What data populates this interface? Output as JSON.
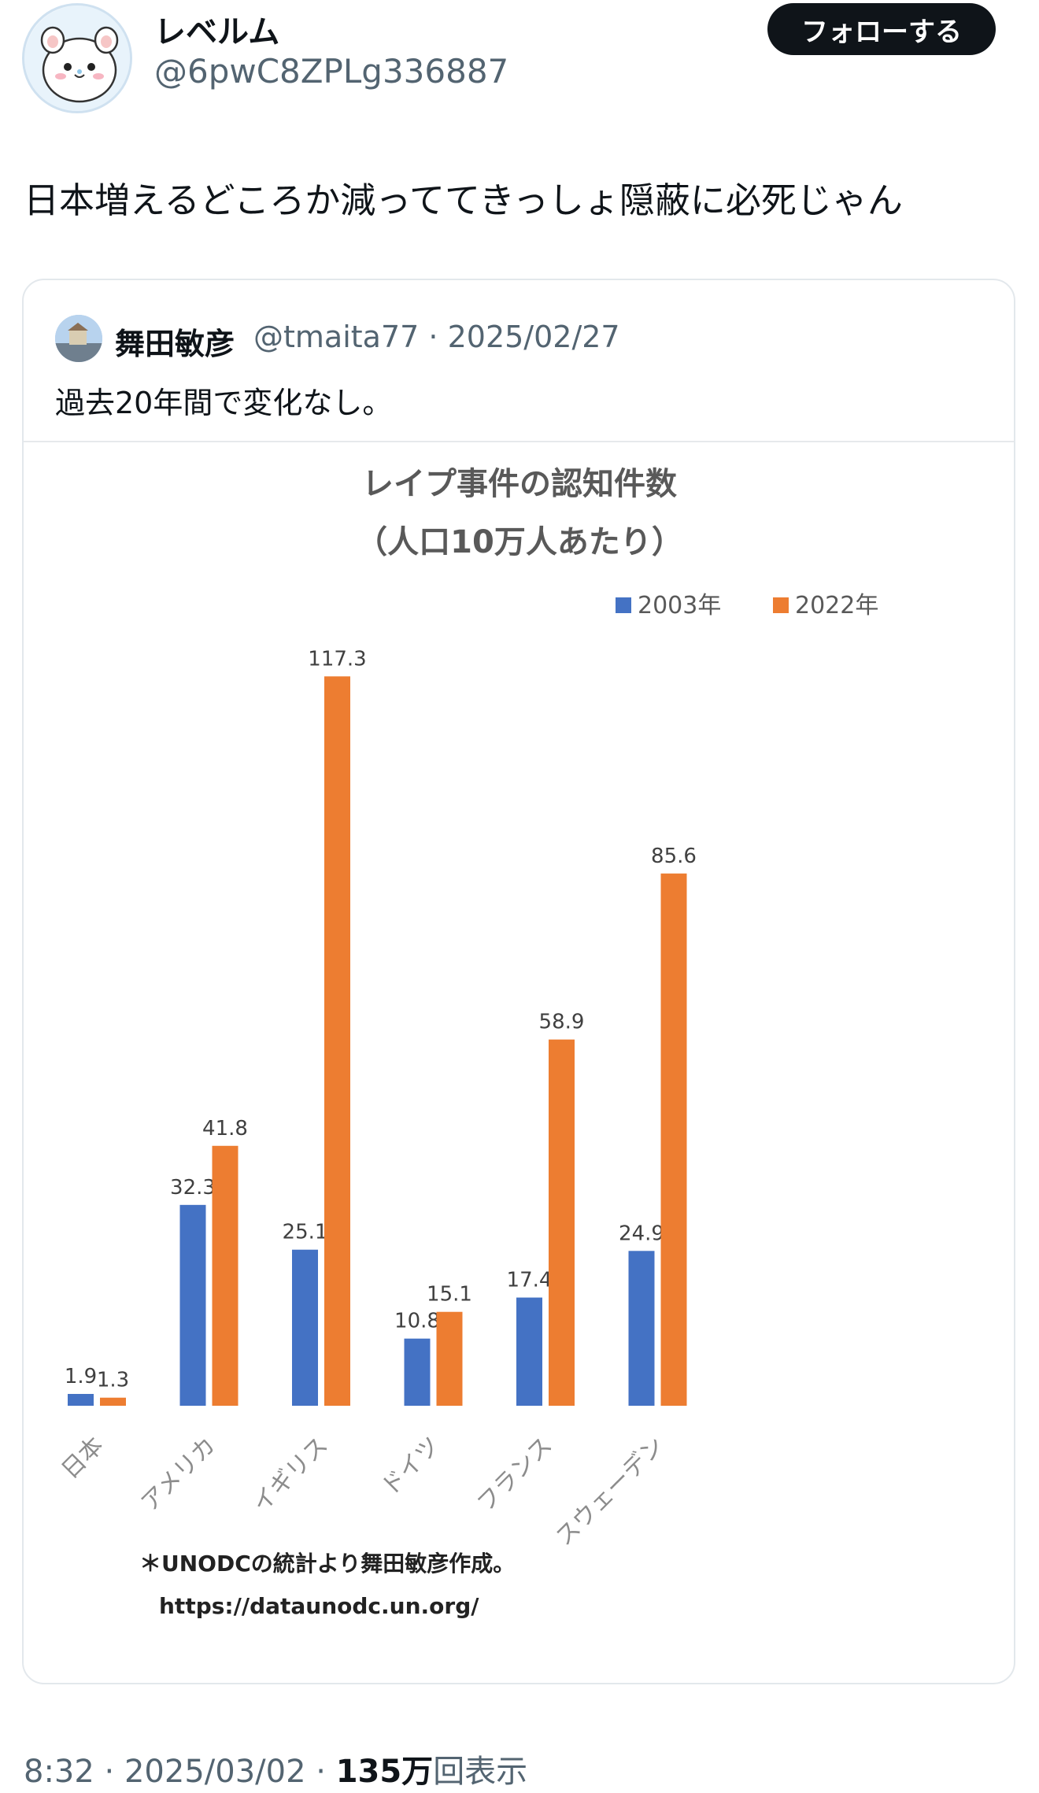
{
  "author": {
    "display_name": "レベルム",
    "handle": "@6pwC8ZPLg336887",
    "follow_label": "フォローする"
  },
  "tweet": {
    "text": "日本増えるどころか減っててきっしょ隠蔽に必死じゃん"
  },
  "quote": {
    "display_name": "舞田敏彦",
    "handle": "@tmaita77",
    "separator": "·",
    "date": "2025/02/27",
    "text": "過去20年間で変化なし。"
  },
  "chart_data": {
    "type": "bar",
    "title": "レイプ事件の認知件数",
    "subtitle": "（人口10万人あたり）",
    "categories": [
      "日本",
      "アメリカ",
      "イギリス",
      "ドイツ",
      "フランス",
      "スウェーデン"
    ],
    "series": [
      {
        "name": "2003年",
        "color": "#4472c4",
        "values": [
          1.9,
          32.3,
          25.1,
          10.8,
          17.4,
          24.9
        ]
      },
      {
        "name": "2022年",
        "color": "#ed7d31",
        "values": [
          1.3,
          41.8,
          117.3,
          15.1,
          58.9,
          85.6
        ]
      }
    ],
    "ylim": [
      0,
      120
    ],
    "legend": "top-right",
    "note": "＊UNODCの統計より舞田敏彦作成。",
    "source_url": "https://dataunodc.un.org/"
  },
  "footer": {
    "time": "8:32",
    "separator": "·",
    "date": "2025/03/02",
    "views_count": "135万",
    "views_label": "回表示"
  }
}
